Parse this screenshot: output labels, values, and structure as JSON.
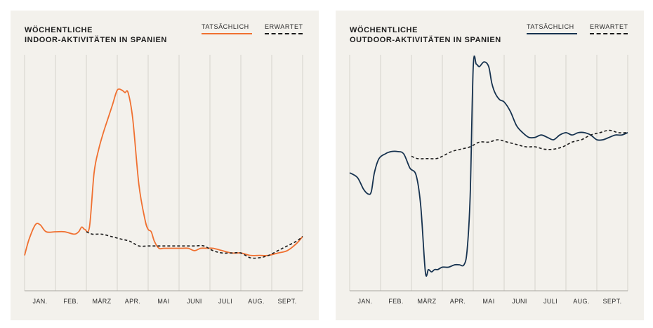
{
  "colors": {
    "background": "#f3f1ec",
    "grid": "#d5d3cd",
    "axis": "#a8a6a0",
    "expected": "#1a1a1a"
  },
  "chart_data": [
    {
      "type": "line",
      "title_line1": "WÖCHENTLICHE",
      "title_line2": "INDOOR-AKTIVITÄTEN IN SPANIEN",
      "legend": {
        "actual": "TATSÄCHLICH",
        "expected": "ERWARTET"
      },
      "categories": [
        "JAN.",
        "FEB.",
        "MÄRZ",
        "APR.",
        "MAI",
        "JUNI",
        "JULI",
        "AUG.",
        "SEPT."
      ],
      "grid": true,
      "ylim": [
        0,
        100
      ],
      "series": [
        {
          "name": "TATSÄCHLICH",
          "color": "#f07030",
          "style": "solid",
          "x": [
            0,
            0.15,
            0.35,
            0.5,
            0.7,
            1.0,
            1.3,
            1.6,
            1.75,
            1.85,
            1.95,
            2.1,
            2.25,
            2.4,
            2.55,
            2.7,
            2.85,
            3.0,
            3.15,
            3.25,
            3.35,
            3.5,
            3.7,
            3.9,
            4.0,
            4.1,
            4.2,
            4.35,
            4.5,
            4.7,
            4.9,
            5.1,
            5.3,
            5.5,
            5.7,
            5.9,
            6.1,
            6.4,
            6.7,
            7.0,
            7.3,
            7.6,
            7.9,
            8.2,
            8.5,
            8.8,
            9.0
          ],
          "y": [
            15,
            22,
            28,
            28,
            25,
            25,
            25,
            24,
            25,
            27,
            26,
            27,
            50,
            60,
            67,
            73,
            79,
            85,
            85,
            84,
            84,
            73,
            45,
            30,
            26,
            25,
            21,
            18,
            18,
            18,
            18,
            18,
            18,
            17,
            18,
            18,
            18,
            17,
            16,
            16,
            15,
            15,
            15,
            16,
            17,
            20,
            23
          ]
        },
        {
          "name": "ERWARTET",
          "color": "#1a1a1a",
          "style": "dashed",
          "x": [
            2.0,
            2.2,
            2.5,
            2.8,
            3.1,
            3.4,
            3.7,
            4.0,
            4.3,
            4.6,
            4.9,
            5.2,
            5.5,
            5.8,
            6.1,
            6.4,
            6.7,
            7.0,
            7.3,
            7.6,
            7.9,
            8.2,
            8.5,
            8.8,
            9.0
          ],
          "y": [
            25,
            24,
            24,
            23,
            22,
            21,
            19,
            19,
            19,
            19,
            19,
            19,
            19,
            19,
            17,
            16,
            16,
            16,
            14,
            14,
            15,
            17,
            19,
            21,
            23
          ]
        }
      ]
    },
    {
      "type": "line",
      "title_line1": "WÖCHENTLICHE",
      "title_line2": "OUTDOOR-AKTIVITÄTEN IN SPANIEN",
      "legend": {
        "actual": "TATSÄCHLICH",
        "expected": "ERWARTET"
      },
      "categories": [
        "JAN.",
        "FEB.",
        "MÄRZ",
        "APR.",
        "MAI",
        "JUNI",
        "JULI",
        "AUG.",
        "SEPT."
      ],
      "grid": true,
      "ylim": [
        0,
        100
      ],
      "series": [
        {
          "name": "TATSÄCHLICH",
          "color": "#16324f",
          "style": "solid",
          "x": [
            0,
            0.25,
            0.45,
            0.6,
            0.7,
            0.8,
            0.95,
            1.15,
            1.35,
            1.55,
            1.75,
            1.95,
            2.15,
            2.3,
            2.45,
            2.55,
            2.65,
            2.75,
            2.85,
            3.0,
            3.2,
            3.4,
            3.55,
            3.7,
            3.8,
            3.9,
            4.0,
            4.1,
            4.2,
            4.35,
            4.5,
            4.6,
            4.7,
            4.85,
            5.0,
            5.2,
            5.4,
            5.6,
            5.8,
            6.0,
            6.2,
            6.4,
            6.6,
            6.8,
            7.0,
            7.2,
            7.4,
            7.6,
            7.8,
            8.0,
            8.2,
            8.4,
            8.6,
            8.8,
            9.0
          ],
          "y": [
            50,
            48,
            43,
            41,
            42,
            50,
            56,
            58,
            59,
            59,
            58,
            52,
            49,
            36,
            8,
            9,
            8,
            9,
            9,
            10,
            10,
            11,
            11,
            11,
            17,
            40,
            95,
            96,
            95,
            97,
            95,
            88,
            84,
            81,
            80,
            76,
            70,
            67,
            65,
            65,
            66,
            65,
            64,
            66,
            67,
            66,
            67,
            67,
            66,
            64,
            64,
            65,
            66,
            66,
            67
          ]
        },
        {
          "name": "ERWARTET",
          "color": "#1a1a1a",
          "style": "dashed",
          "x": [
            2.0,
            2.2,
            2.5,
            2.8,
            3.0,
            3.3,
            3.6,
            3.9,
            4.2,
            4.5,
            4.8,
            5.1,
            5.4,
            5.7,
            6.0,
            6.3,
            6.6,
            6.9,
            7.2,
            7.5,
            7.8,
            8.1,
            8.4,
            8.7,
            9.0
          ],
          "y": [
            57,
            56,
            56,
            56,
            57,
            59,
            60,
            61,
            63,
            63,
            64,
            63,
            62,
            61,
            61,
            60,
            60,
            61,
            63,
            64,
            66,
            67,
            68,
            67,
            67
          ]
        }
      ]
    }
  ]
}
